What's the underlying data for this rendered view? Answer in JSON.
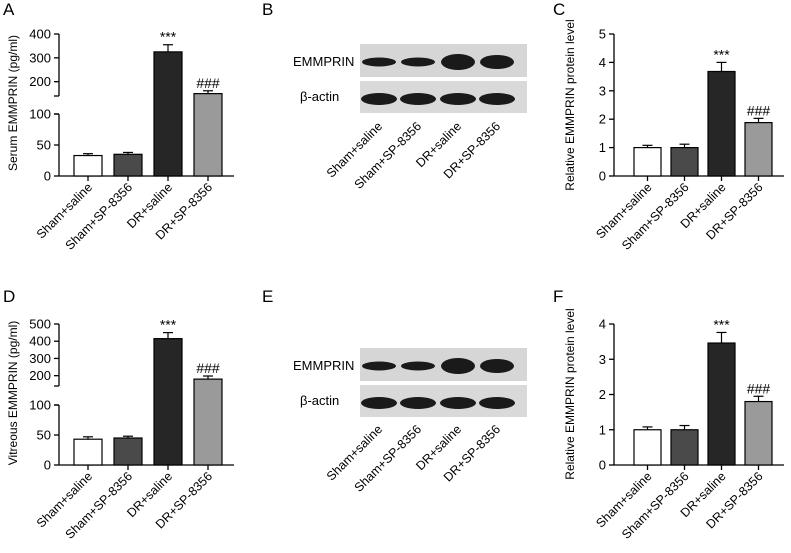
{
  "panel_letters": [
    "A",
    "B",
    "C",
    "D",
    "E",
    "F"
  ],
  "blot": {
    "categories": [
      "Sham+saline",
      "Sham+SP-8356",
      "DR+saline",
      "DR+SP-8356"
    ],
    "B": {
      "protein_label": "EMMPRIN",
      "control_label": "β-actin"
    },
    "E": {
      "protein_label": "EMMPRIN",
      "control_label": "β-actin"
    }
  },
  "colors": {
    "sham_saline": "#ffffff",
    "sham_sp8356": "#4a4a4a",
    "dr_saline": "#262626",
    "dr_sp8356": "#9a9a9a"
  },
  "chart_data": [
    {
      "panel": "A",
      "type": "bar",
      "ylabel": "Serum EMMPRIN (pg/ml)",
      "categories": [
        "Sham+saline",
        "Sham+SP-8356",
        "DR+saline",
        "DR+SP-8356"
      ],
      "values": [
        33,
        35,
        325,
        150
      ],
      "errors": [
        3,
        3,
        30,
        12
      ],
      "annotations": [
        "",
        "",
        "***",
        "###"
      ],
      "y_axis": "broken",
      "lower_segment": {
        "range": [
          0,
          100
        ],
        "ticks": [
          "0",
          "50",
          "100"
        ]
      },
      "upper_segment": {
        "range": [
          140,
          400
        ],
        "ticks": [
          "200",
          "300",
          "400"
        ]
      }
    },
    {
      "panel": "C",
      "type": "bar",
      "ylabel": "Relative EMMPRIN protein level",
      "categories": [
        "Sham+saline",
        "Sham+SP-8356",
        "DR+saline",
        "DR+SP-8356"
      ],
      "values": [
        1.0,
        1.0,
        3.68,
        1.88
      ],
      "errors": [
        0.08,
        0.12,
        0.32,
        0.15
      ],
      "annotations": [
        "",
        "",
        "***",
        "###"
      ],
      "ylim": [
        0,
        5
      ],
      "ticks": [
        "0",
        "1",
        "2",
        "3",
        "4",
        "5"
      ]
    },
    {
      "panel": "D",
      "type": "bar",
      "ylabel": "Vitreous EMMPRIN (pg/ml)",
      "categories": [
        "Sham+saline",
        "Sham+SP-8356",
        "DR+saline",
        "DR+SP-8356"
      ],
      "values": [
        43,
        45,
        415,
        180
      ],
      "errors": [
        4,
        3,
        35,
        18
      ],
      "annotations": [
        "",
        "",
        "***",
        "###"
      ],
      "y_axis": "broken",
      "lower_segment": {
        "range": [
          0,
          100
        ],
        "ticks": [
          "0",
          "50",
          "100"
        ]
      },
      "upper_segment": {
        "range": [
          140,
          500
        ],
        "ticks": [
          "200",
          "300",
          "400",
          "500"
        ]
      }
    },
    {
      "panel": "F",
      "type": "bar",
      "ylabel": "Relative EMMPRIN protein level",
      "categories": [
        "Sham+saline",
        "Sham+SP-8356",
        "DR+saline",
        "DR+SP-8356"
      ],
      "values": [
        1.0,
        1.0,
        3.46,
        1.8
      ],
      "errors": [
        0.08,
        0.12,
        0.3,
        0.15
      ],
      "annotations": [
        "",
        "",
        "***",
        "###"
      ],
      "ylim": [
        0,
        4
      ],
      "ticks": [
        "0",
        "1",
        "2",
        "3",
        "4"
      ]
    }
  ]
}
